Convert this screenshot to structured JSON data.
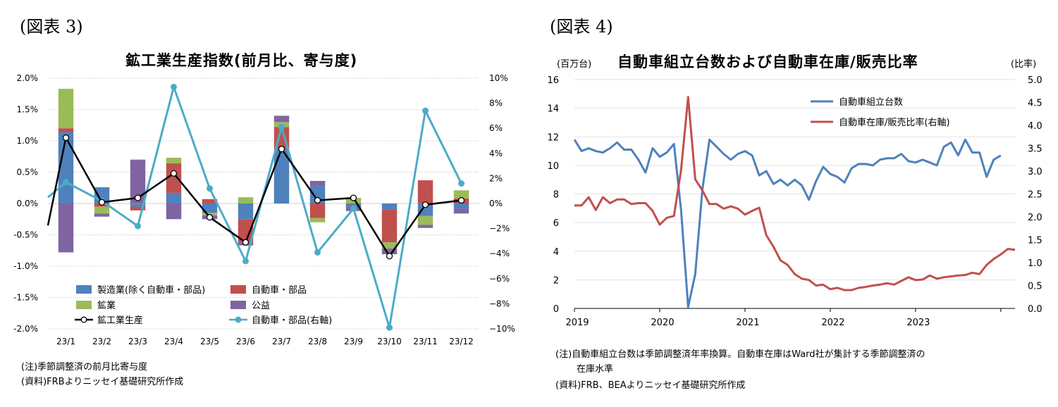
{
  "fig3": {
    "label": "(図表 3)",
    "title": "鉱工業生産指数(前月比、寄与度)",
    "note": "(注)季節調整済の前月比寄与度",
    "source": "(資料)FRBよりニッセイ基礎研究所作成"
  },
  "fig4": {
    "label": "(図表 4)",
    "title": "自動車組立台数および自動車在庫/販売比率",
    "unit_left": "(百万台)",
    "unit_right": "(比率)",
    "note_line1": "(注)自動車組立台数は季節調整済年率換算。自動車在庫はWard社が集計する季節調整済の",
    "note_line2": "在庫水準",
    "source": "(資料)FRB、BEAよりニッセイ基礎研究所作成"
  },
  "chart_data": [
    {
      "type": "bar",
      "categories": [
        "23/1",
        "23/2",
        "23/3",
        "23/4",
        "23/5",
        "23/6",
        "23/7",
        "23/8",
        "23/9",
        "23/10",
        "23/11",
        "23/12"
      ],
      "y_ticks": [
        "2.0%",
        "1.5%",
        "1.0%",
        "0.5%",
        "0.0%",
        "-0.5%",
        "-1.0%",
        "-1.5%",
        "-2.0%"
      ],
      "y2_ticks": [
        "10%",
        "8%",
        "6%",
        "4%",
        "2%",
        "0%",
        "−2%",
        "−4%",
        "−6%",
        "−8%",
        "−10%"
      ],
      "ylim": [
        -2.0,
        2.0
      ],
      "y2lim": [
        -10,
        10
      ],
      "stacked": true,
      "series": [
        {
          "name": "製造業(除く自動車・部品)",
          "color": "#4f81bd",
          "values": [
            1.14,
            0.26,
            -0.05,
            0.17,
            -0.15,
            -0.25,
            0.87,
            0.28,
            -0.05,
            -0.1,
            -0.2,
            -0.08
          ]
        },
        {
          "name": "自動車・部品",
          "color": "#c0504d",
          "values": [
            0.06,
            -0.05,
            -0.06,
            0.47,
            0.07,
            -0.37,
            0.35,
            -0.23,
            0.0,
            -0.52,
            0.37,
            0.08
          ]
        },
        {
          "name": "鉱業",
          "color": "#9bbb59",
          "values": [
            0.63,
            -0.11,
            0.0,
            0.09,
            -0.04,
            0.1,
            0.08,
            -0.07,
            0.09,
            -0.1,
            -0.14,
            0.13
          ]
        },
        {
          "name": "公益",
          "color": "#8064a2",
          "values": [
            -0.78,
            -0.05,
            0.7,
            -0.25,
            -0.06,
            -0.05,
            0.1,
            0.08,
            -0.07,
            -0.09,
            -0.05,
            -0.08
          ]
        }
      ],
      "lines": [
        {
          "name": "鉱工業生産",
          "axis": "left",
          "color": "#000000",
          "values": [
            1.05,
            0.02,
            0.09,
            0.48,
            -0.22,
            -0.62,
            0.87,
            0.05,
            0.09,
            -0.84,
            -0.02,
            0.05
          ]
        },
        {
          "name": "自動車・部品(右軸)",
          "axis": "right",
          "color": "#4bacc6",
          "values": [
            1.7,
            0.2,
            -1.8,
            9.3,
            1.2,
            -4.6,
            6.1,
            -3.9,
            -0.4,
            -9.9,
            7.4,
            1.6
          ]
        }
      ],
      "line_edges": {
        "black_left": -0.35,
        "teal_left": 0.5
      }
    },
    {
      "type": "line",
      "x_ticks": [
        "2019",
        "2020",
        "2021",
        "2022",
        "2023"
      ],
      "x_start": 2019.0,
      "x_step_months": 1,
      "y_ticks": [
        "16",
        "14",
        "12",
        "10",
        "8",
        "6",
        "4",
        "2",
        "0"
      ],
      "y2_ticks": [
        "5.0",
        "4.5",
        "4.0",
        "3.5",
        "3.0",
        "2.5",
        "2.0",
        "1.5",
        "1.0",
        "0.5",
        "0.0"
      ],
      "ylim": [
        0,
        16
      ],
      "y2lim": [
        0.0,
        5.0
      ],
      "series": [
        {
          "name": "自動車組立台数",
          "axis": "left",
          "color": "#4f81bd",
          "values": [
            11.8,
            11.0,
            11.2,
            11.0,
            10.9,
            11.2,
            11.6,
            11.1,
            11.1,
            10.4,
            9.5,
            11.2,
            10.6,
            10.9,
            11.5,
            6.9,
            0.1,
            2.4,
            8.3,
            11.8,
            11.3,
            10.8,
            10.4,
            10.8,
            11.0,
            10.7,
            9.3,
            9.6,
            8.7,
            9.0,
            8.6,
            9.0,
            8.6,
            7.6,
            8.9,
            9.9,
            9.4,
            9.2,
            8.8,
            9.8,
            10.1,
            10.1,
            10.0,
            10.4,
            10.5,
            10.5,
            10.8,
            10.3,
            10.2,
            10.4,
            10.2,
            10.0,
            11.3,
            11.6,
            10.7,
            11.8,
            10.9,
            10.9,
            9.2,
            10.4,
            10.7
          ]
        },
        {
          "name": "自動車在庫/販売比率(右軸)",
          "axis": "right",
          "color": "#c0504d",
          "values": [
            2.25,
            2.25,
            2.43,
            2.15,
            2.43,
            2.3,
            2.38,
            2.38,
            2.28,
            2.3,
            2.3,
            2.13,
            1.83,
            1.98,
            2.02,
            3.02,
            4.62,
            2.82,
            2.58,
            2.28,
            2.28,
            2.18,
            2.23,
            2.18,
            2.05,
            2.13,
            2.2,
            1.6,
            1.35,
            1.05,
            0.95,
            0.75,
            0.65,
            0.62,
            0.5,
            0.52,
            0.42,
            0.45,
            0.4,
            0.4,
            0.45,
            0.47,
            0.5,
            0.52,
            0.55,
            0.52,
            0.6,
            0.68,
            0.62,
            0.63,
            0.72,
            0.65,
            0.68,
            0.7,
            0.72,
            0.73,
            0.78,
            0.75,
            0.95,
            1.08,
            1.18,
            1.3,
            1.28
          ]
        }
      ]
    }
  ]
}
